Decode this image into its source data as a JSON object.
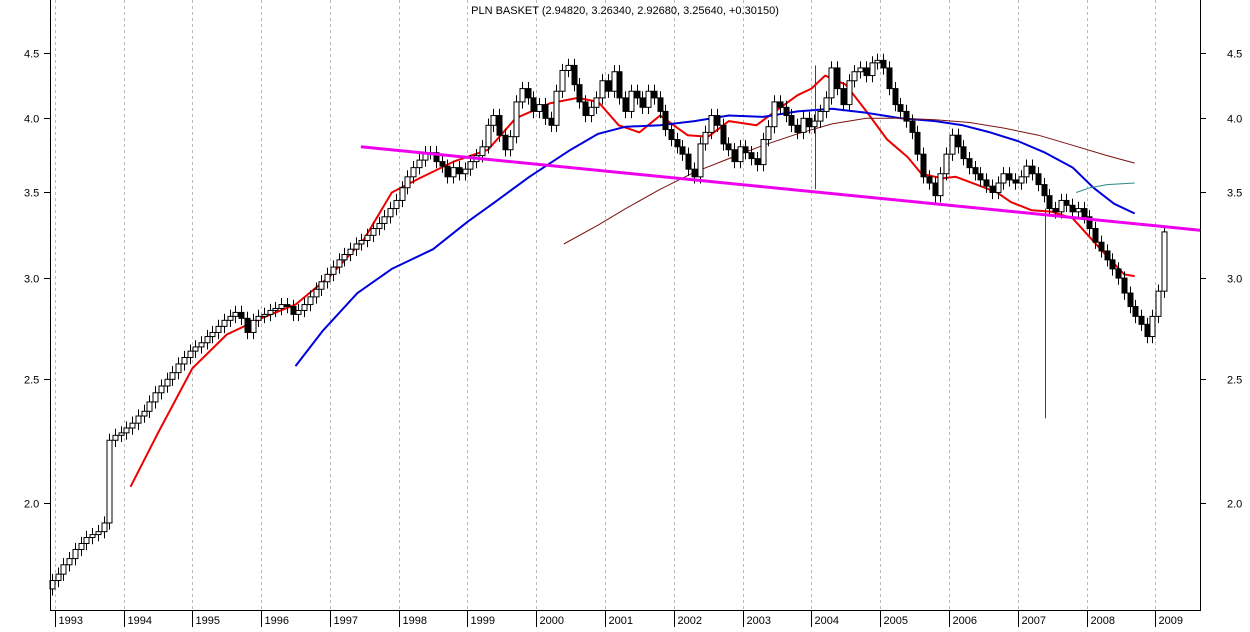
{
  "chart_data": {
    "type": "candlestick",
    "title": "PLN BASKET (2.94820, 3.26340, 2.92680, 3.25640, +0.30150)",
    "y_scale": "log",
    "ylim": [
      1.65,
      4.95
    ],
    "xlim": [
      1992.93,
      2009.65
    ],
    "y_ticks": [
      2.0,
      2.5,
      3.0,
      3.5,
      4.0,
      4.5
    ],
    "y_tick_labels": [
      "2.0",
      "2.5",
      "3.0",
      "3.5",
      "4.0",
      "4.5"
    ],
    "x_tick_years": [
      1993,
      1994,
      1995,
      1996,
      1997,
      1998,
      1999,
      2000,
      2001,
      2002,
      2003,
      2004,
      2005,
      2006,
      2007,
      2008,
      2009
    ],
    "x_tick_labels": [
      "1993",
      "1994",
      "1995",
      "1996",
      "1997",
      "1998",
      "1999",
      "2000",
      "2001",
      "2002",
      "2003",
      "2004",
      "2005",
      "2006",
      "2007",
      "2008",
      "2009"
    ],
    "grid_vertical": true,
    "grid_horizontal": false,
    "colors": {
      "candle_up_fill": "#ffffff",
      "candle_down_fill": "#000000",
      "candle_outline": "#000000",
      "ma_short": "#ee0000",
      "ma_medium": "#0000dd",
      "ma_long": "#7a1010",
      "ma_partial": "#2a8a8a",
      "trendline": "#ee00ee",
      "spike": "#3333bb",
      "grid": "#bbbbbb"
    },
    "closes": [
      1.74,
      1.76,
      1.79,
      1.81,
      1.84,
      1.86,
      1.88,
      1.89,
      1.9,
      1.93,
      2.24,
      2.26,
      2.27,
      2.29,
      2.31,
      2.34,
      2.36,
      2.4,
      2.44,
      2.47,
      2.5,
      2.53,
      2.57,
      2.6,
      2.63,
      2.65,
      2.67,
      2.7,
      2.72,
      2.75,
      2.78,
      2.8,
      2.82,
      2.79,
      2.72,
      2.78,
      2.8,
      2.81,
      2.83,
      2.84,
      2.86,
      2.85,
      2.81,
      2.83,
      2.86,
      2.9,
      2.94,
      2.98,
      3.02,
      3.06,
      3.1,
      3.13,
      3.16,
      3.19,
      3.21,
      3.24,
      3.28,
      3.31,
      3.35,
      3.4,
      3.45,
      3.53,
      3.6,
      3.66,
      3.71,
      3.76,
      3.76,
      3.7,
      3.67,
      3.6,
      3.66,
      3.62,
      3.65,
      3.7,
      3.74,
      3.8,
      3.95,
      4.02,
      3.88,
      3.78,
      3.87,
      4.12,
      4.22,
      4.15,
      4.05,
      4.1,
      4.0,
      3.95,
      4.2,
      4.36,
      4.4,
      4.25,
      4.12,
      4.02,
      4.08,
      4.15,
      4.28,
      4.2,
      4.35,
      4.15,
      4.05,
      4.2,
      4.15,
      4.08,
      4.2,
      4.15,
      4.05,
      3.92,
      3.85,
      3.8,
      3.75,
      3.65,
      3.6,
      3.82,
      3.9,
      4.02,
      3.95,
      3.82,
      3.78,
      3.7,
      3.8,
      3.76,
      3.72,
      3.68,
      3.85,
      3.94,
      4.12,
      4.08,
      4.02,
      3.95,
      3.9,
      4.0,
      3.94,
      3.98,
      4.05,
      4.15,
      4.38,
      4.22,
      4.1,
      4.28,
      4.35,
      4.38,
      4.32,
      4.42,
      4.44,
      4.38,
      4.22,
      4.1,
      4.05,
      3.98,
      3.9,
      3.75,
      3.6,
      3.56,
      3.48,
      3.62,
      3.75,
      3.88,
      3.8,
      3.72,
      3.66,
      3.62,
      3.58,
      3.54,
      3.5,
      3.56,
      3.62,
      3.58,
      3.56,
      3.6,
      3.67,
      3.62,
      3.55,
      3.48,
      3.4,
      3.38,
      3.45,
      3.42,
      3.38,
      3.4,
      3.35,
      3.28,
      3.2,
      3.15,
      3.1,
      3.05,
      3.0,
      2.92,
      2.85,
      2.8,
      2.76,
      2.7,
      2.8,
      2.93,
      3.26
    ],
    "candles_first_date": "1992-12",
    "candles_interval": "month",
    "moving_averages": [
      {
        "color_key": "ma_short",
        "values": [
          [
            1994.1,
            2.06
          ],
          [
            1994.5,
            2.27
          ],
          [
            1995.0,
            2.55
          ],
          [
            1995.5,
            2.71
          ],
          [
            1996.0,
            2.79
          ],
          [
            1996.5,
            2.86
          ],
          [
            1997.0,
            3.01
          ],
          [
            1997.5,
            3.22
          ],
          [
            1997.9,
            3.5
          ],
          [
            1998.3,
            3.59
          ],
          [
            1998.8,
            3.7
          ],
          [
            1999.3,
            3.78
          ],
          [
            1999.7,
            4.0
          ],
          [
            2000.2,
            4.11
          ],
          [
            2000.6,
            4.15
          ],
          [
            2000.9,
            4.12
          ],
          [
            2001.2,
            3.95
          ],
          [
            2001.5,
            3.9
          ],
          [
            2001.8,
            4.02
          ],
          [
            2002.2,
            3.88
          ],
          [
            2002.5,
            3.87
          ],
          [
            2002.8,
            3.98
          ],
          [
            2003.2,
            3.95
          ],
          [
            2003.5,
            4.06
          ],
          [
            2003.8,
            4.17
          ],
          [
            2004.0,
            4.22
          ],
          [
            2004.2,
            4.32
          ],
          [
            2004.5,
            4.25
          ],
          [
            2004.8,
            4.05
          ],
          [
            2005.1,
            3.85
          ],
          [
            2005.4,
            3.73
          ],
          [
            2005.6,
            3.62
          ],
          [
            2005.9,
            3.59
          ],
          [
            2006.1,
            3.6
          ],
          [
            2006.4,
            3.55
          ],
          [
            2006.7,
            3.5
          ],
          [
            2006.9,
            3.44
          ],
          [
            2007.2,
            3.39
          ],
          [
            2007.5,
            3.38
          ],
          [
            2007.8,
            3.34
          ],
          [
            2008.0,
            3.25
          ],
          [
            2008.3,
            3.12
          ],
          [
            2008.55,
            3.02
          ],
          [
            2008.7,
            3.01
          ]
        ]
      },
      {
        "color_key": "ma_medium",
        "values": [
          [
            1996.5,
            2.56
          ],
          [
            1996.9,
            2.73
          ],
          [
            1997.4,
            2.92
          ],
          [
            1997.9,
            3.05
          ],
          [
            1998.5,
            3.16
          ],
          [
            1999.0,
            3.32
          ],
          [
            1999.4,
            3.44
          ],
          [
            1999.9,
            3.6
          ],
          [
            2000.5,
            3.78
          ],
          [
            2000.9,
            3.89
          ],
          [
            2001.3,
            3.94
          ],
          [
            2001.8,
            3.95
          ],
          [
            2002.3,
            3.98
          ],
          [
            2002.8,
            4.02
          ],
          [
            2003.3,
            4.01
          ],
          [
            2003.8,
            4.05
          ],
          [
            2004.3,
            4.07
          ],
          [
            2004.8,
            4.04
          ],
          [
            2005.3,
            4.0
          ],
          [
            2005.8,
            3.98
          ],
          [
            2006.2,
            3.95
          ],
          [
            2006.6,
            3.9
          ],
          [
            2007.0,
            3.84
          ],
          [
            2007.4,
            3.76
          ],
          [
            2007.8,
            3.66
          ],
          [
            2008.1,
            3.53
          ],
          [
            2008.4,
            3.43
          ],
          [
            2008.7,
            3.37
          ]
        ]
      },
      {
        "color_key": "ma_long",
        "values": [
          [
            2000.4,
            3.19
          ],
          [
            2000.9,
            3.3
          ],
          [
            2001.3,
            3.4
          ],
          [
            2001.8,
            3.52
          ],
          [
            2002.3,
            3.63
          ],
          [
            2002.8,
            3.72
          ],
          [
            2003.3,
            3.81
          ],
          [
            2003.8,
            3.89
          ],
          [
            2004.3,
            3.96
          ],
          [
            2004.8,
            4.0
          ],
          [
            2005.3,
            4.0
          ],
          [
            2005.8,
            3.99
          ],
          [
            2006.3,
            3.97
          ],
          [
            2006.8,
            3.93
          ],
          [
            2007.3,
            3.88
          ],
          [
            2007.8,
            3.81
          ],
          [
            2008.3,
            3.74
          ],
          [
            2008.7,
            3.69
          ]
        ]
      },
      {
        "color_key": "ma_partial",
        "values": [
          [
            2007.85,
            3.5
          ],
          [
            2008.05,
            3.53
          ],
          [
            2008.3,
            3.55
          ],
          [
            2008.7,
            3.56
          ]
        ]
      }
    ],
    "trendline": {
      "color_key": "trendline",
      "start": [
        1997.45,
        3.8
      ],
      "end": [
        2009.65,
        3.27
      ]
    },
    "spikes": [
      {
        "color_key": "spike",
        "x": 2004.05,
        "from": 4.4,
        "to": 3.52
      },
      {
        "color_key": "spike",
        "x": 2007.4,
        "from": 3.4,
        "to": 2.33
      }
    ]
  }
}
